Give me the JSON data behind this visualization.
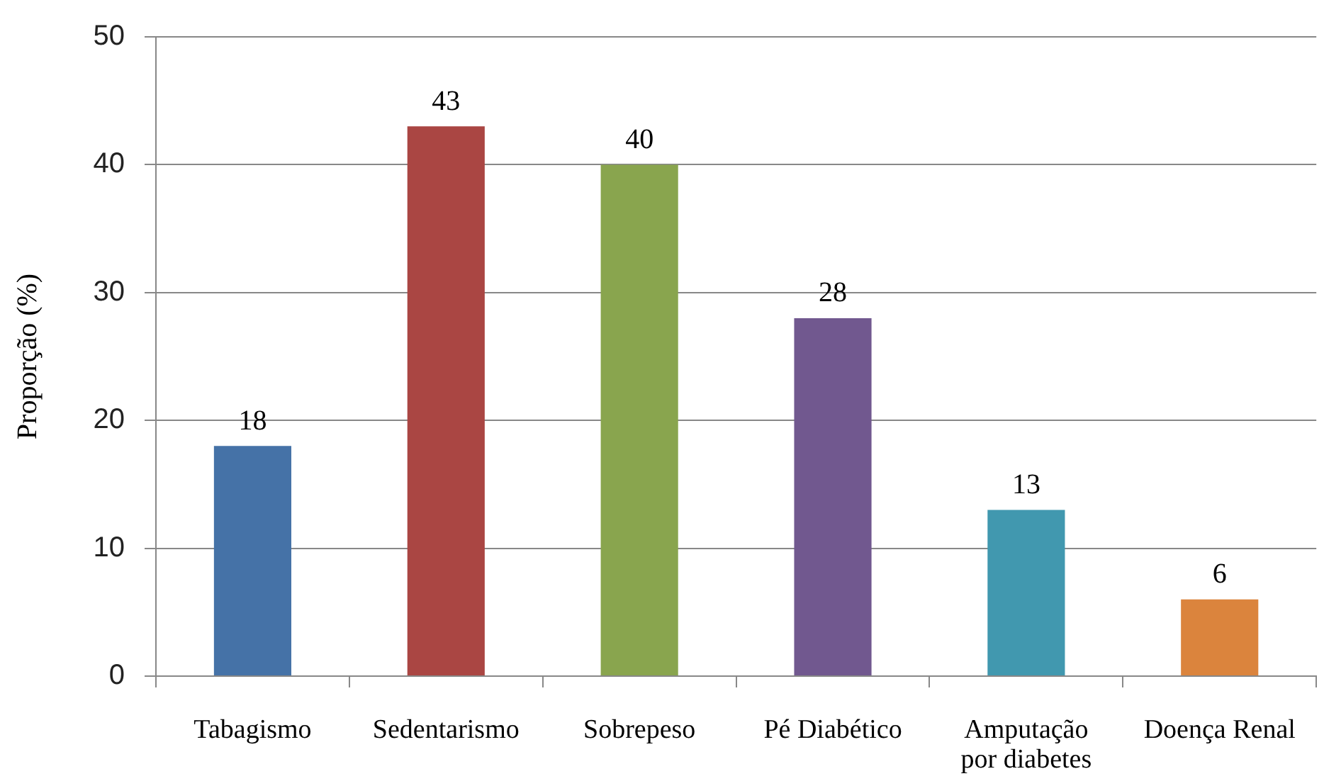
{
  "chart_data": {
    "type": "bar",
    "ylabel": "Proporção (%)",
    "categories": [
      "Tabagismo",
      "Sedentarismo",
      "Sobrepeso",
      "Pé Diabético",
      "Amputação por diabetes",
      "Doença Renal"
    ],
    "values": [
      18,
      43,
      40,
      28,
      13,
      6
    ],
    "colors": [
      "#4572a7",
      "#aa4643",
      "#89a54e",
      "#71588f",
      "#4198af",
      "#db843d"
    ],
    "ylim": [
      0,
      50
    ],
    "yticks": [
      0,
      10,
      20,
      30,
      40,
      50
    ],
    "grid": "y",
    "data_labels": true
  }
}
